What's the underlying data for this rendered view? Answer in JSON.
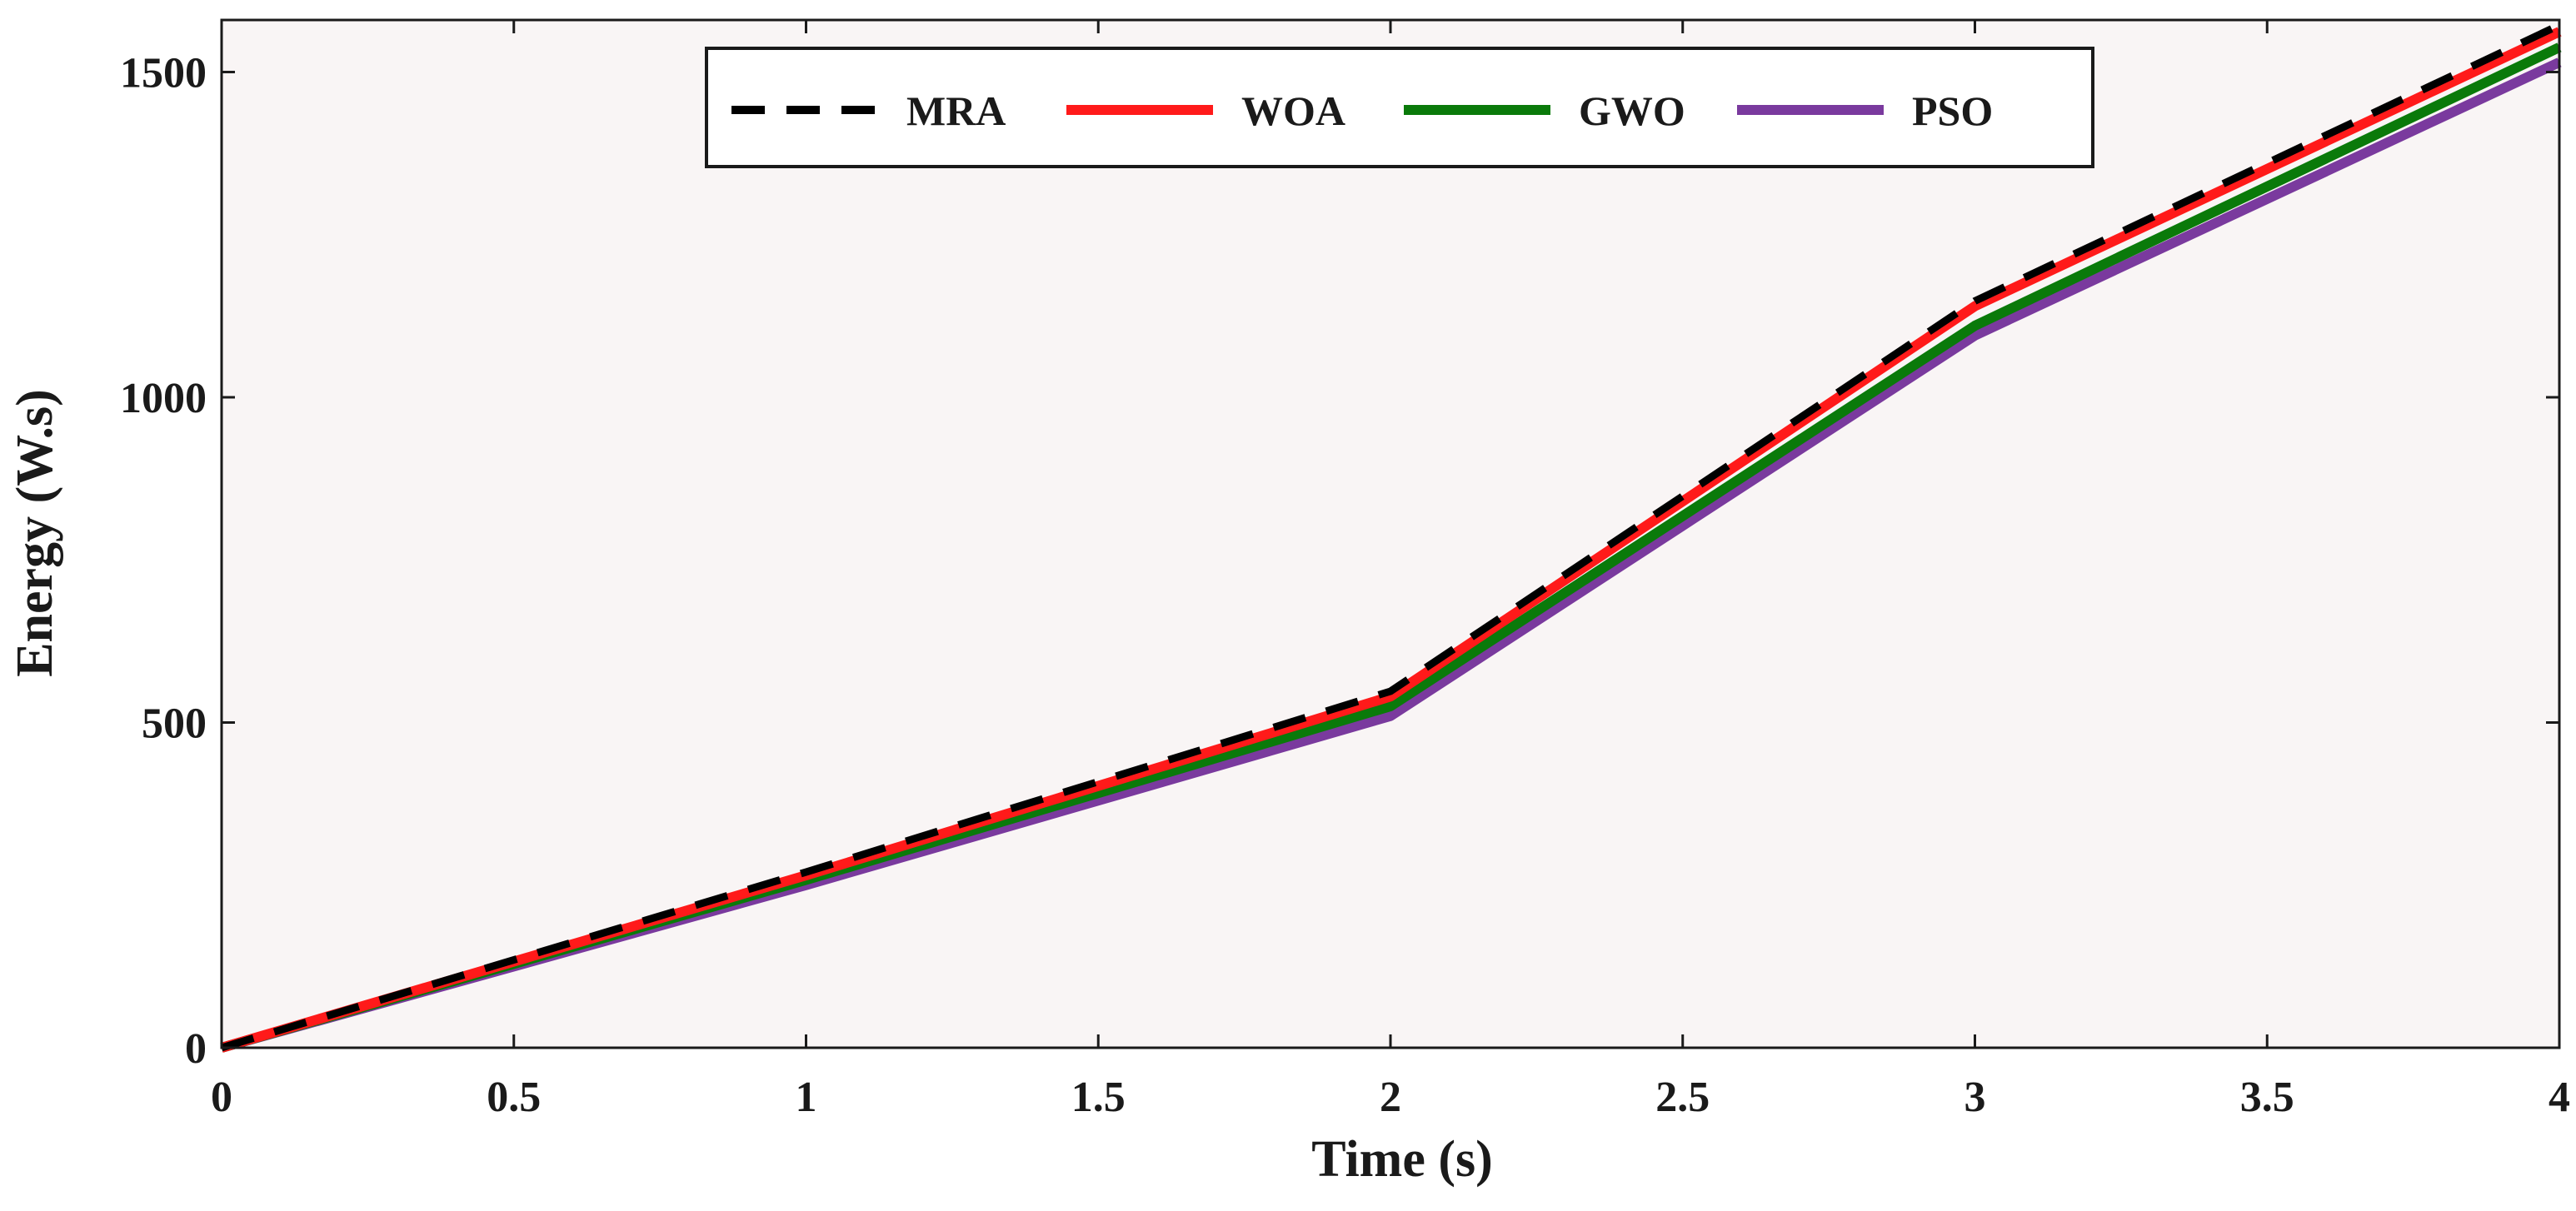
{
  "chart_data": {
    "type": "line",
    "title": "",
    "xlabel": "Time (s)",
    "ylabel": "Energy (W.s)",
    "xlim": [
      0,
      4
    ],
    "ylim": [
      0,
      1580
    ],
    "xticks": [
      0,
      0.5,
      1,
      1.5,
      2,
      2.5,
      3,
      3.5,
      4
    ],
    "xtick_labels": [
      "0",
      "0.5",
      "1",
      "1.5",
      "2",
      "2.5",
      "3",
      "3.5",
      "4"
    ],
    "yticks": [
      0,
      500,
      1000,
      1500
    ],
    "ytick_labels": [
      "0",
      "500",
      "1000",
      "1500"
    ],
    "grid": false,
    "legend_position": "top-center",
    "plot_background": "#f9f5f5",
    "x": [
      0,
      1,
      2,
      3,
      4
    ],
    "series": [
      {
        "name": "MRA",
        "color": "#000000",
        "dashed": true,
        "values": [
          0,
          270,
          548,
          1148,
          1572
        ]
      },
      {
        "name": "WOA",
        "color": "#ff1a1a",
        "dashed": false,
        "values": [
          0,
          265,
          540,
          1140,
          1562
        ]
      },
      {
        "name": "GWO",
        "color": "#0a7a0a",
        "dashed": false,
        "values": [
          0,
          258,
          525,
          1110,
          1538
        ]
      },
      {
        "name": "PSO",
        "color": "#7a3a9e",
        "dashed": false,
        "values": [
          0,
          250,
          510,
          1095,
          1515
        ]
      }
    ]
  }
}
